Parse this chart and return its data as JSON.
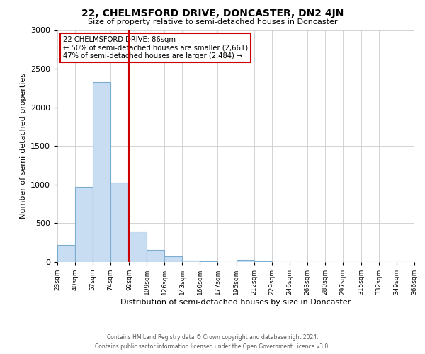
{
  "title": "22, CHELMSFORD DRIVE, DONCASTER, DN2 4JN",
  "subtitle": "Size of property relative to semi-detached houses in Doncaster",
  "xlabel": "Distribution of semi-detached houses by size in Doncaster",
  "ylabel": "Number of semi-detached properties",
  "bin_edges": [
    23,
    40,
    57,
    74,
    92,
    109,
    126,
    143,
    160,
    177,
    195,
    212,
    229,
    246,
    263,
    280,
    297,
    315,
    332,
    349,
    366
  ],
  "bin_counts": [
    220,
    970,
    2330,
    1030,
    390,
    160,
    75,
    20,
    5,
    0,
    30,
    5,
    0,
    0,
    0,
    0,
    0,
    0,
    0,
    0
  ],
  "bar_color": "#c8ddf2",
  "bar_edge_color": "#7aadcf",
  "vline_x": 92,
  "vline_color": "#cc0000",
  "annotation_title": "22 CHELMSFORD DRIVE: 86sqm",
  "annotation_line1": "← 50% of semi-detached houses are smaller (2,661)",
  "annotation_line2": "47% of semi-detached houses are larger (2,484) →",
  "annotation_box_color": "#ffffff",
  "annotation_box_edge_color": "#cc0000",
  "ylim": [
    0,
    3000
  ],
  "yticks": [
    0,
    500,
    1000,
    1500,
    2000,
    2500,
    3000
  ],
  "tick_labels": [
    "23sqm",
    "40sqm",
    "57sqm",
    "74sqm",
    "92sqm",
    "109sqm",
    "126sqm",
    "143sqm",
    "160sqm",
    "177sqm",
    "195sqm",
    "212sqm",
    "229sqm",
    "246sqm",
    "263sqm",
    "280sqm",
    "297sqm",
    "315sqm",
    "332sqm",
    "349sqm",
    "366sqm"
  ],
  "footer_line1": "Contains HM Land Registry data © Crown copyright and database right 2024.",
  "footer_line2": "Contains public sector information licensed under the Open Government Licence v3.0.",
  "background_color": "#ffffff",
  "grid_color": "#cccccc"
}
